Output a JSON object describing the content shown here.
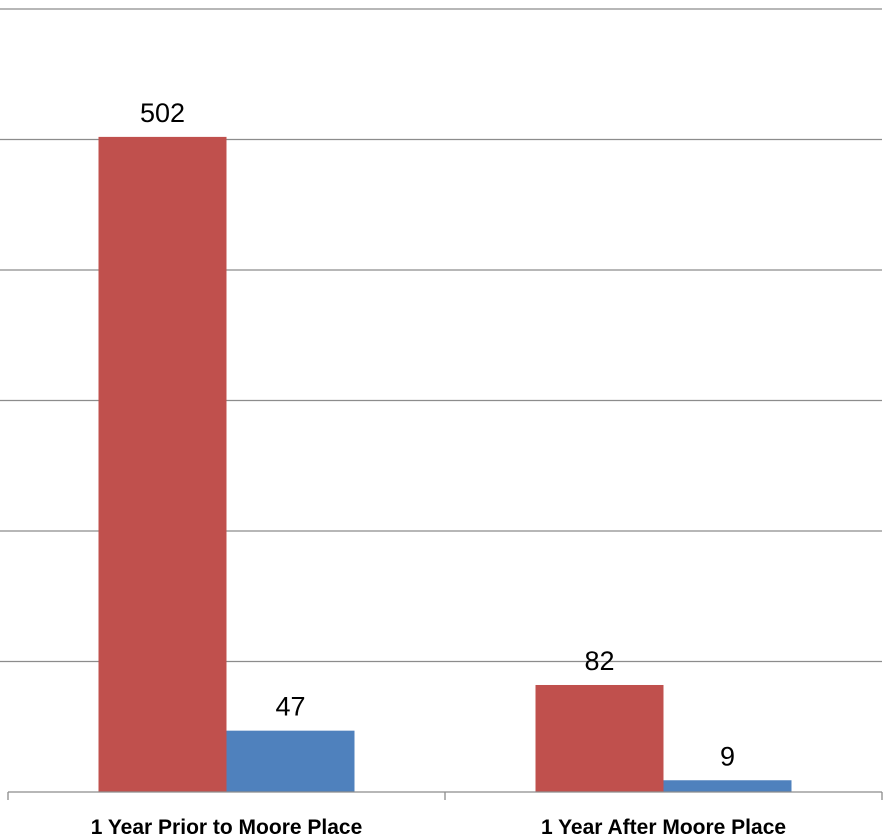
{
  "chart_data": {
    "type": "bar",
    "title": "",
    "xlabel": "",
    "ylabel": "",
    "categories": [
      "1 Year Prior to Moore Place",
      "1 Year After Moore Place"
    ],
    "series": [
      {
        "values": [
          502,
          82
        ],
        "color": "#c0504d"
      },
      {
        "values": [
          47,
          9
        ],
        "color": "#4f81bd"
      }
    ],
    "ylim": [
      0,
      600
    ],
    "y_major_unit": 100,
    "grid": true,
    "data_labels": true,
    "legend": "none"
  }
}
